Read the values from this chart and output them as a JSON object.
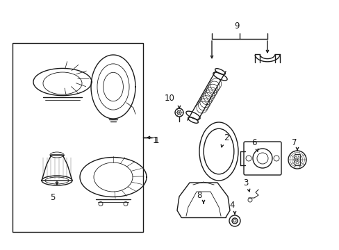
{
  "bg_color": "#ffffff",
  "line_color": "#1a1a1a",
  "lw": 1.0,
  "tlw": 0.6,
  "fig_width": 4.89,
  "fig_height": 3.6,
  "dpi": 100,
  "font_size": 8.5
}
